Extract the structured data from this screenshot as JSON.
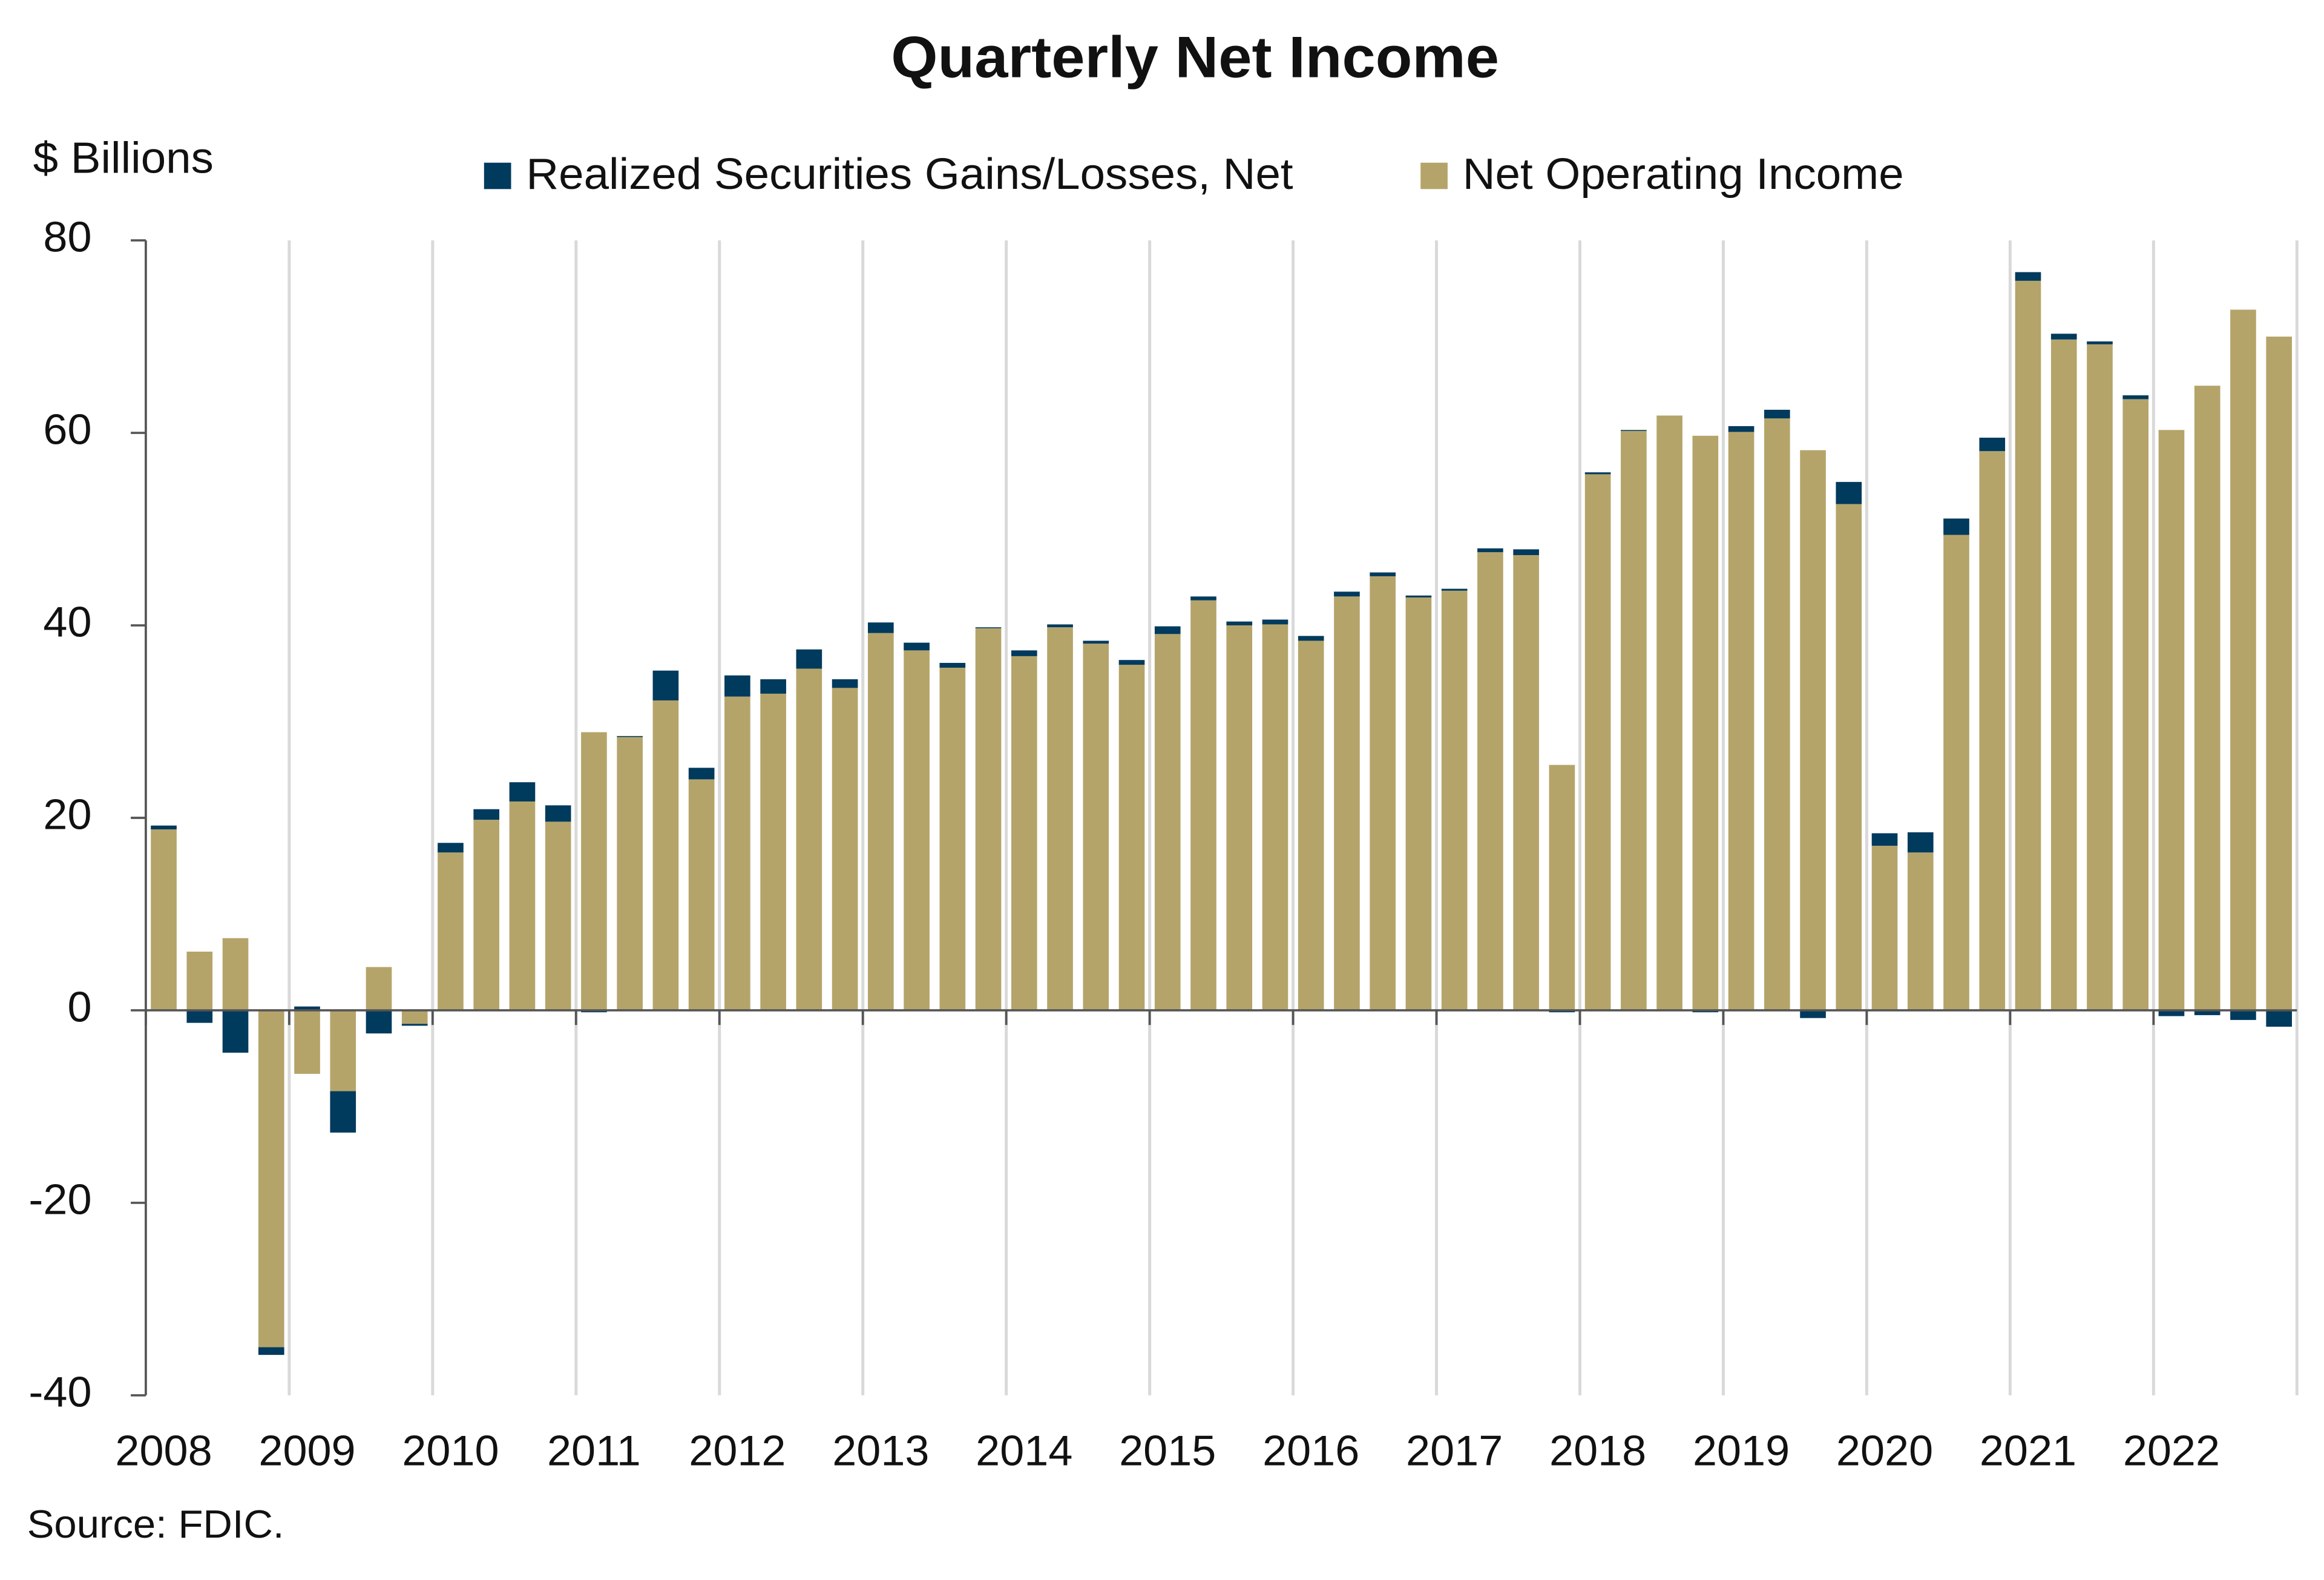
{
  "chart_data": {
    "type": "stacked_bar",
    "title": "Quarterly Net Income",
    "y_label": "$ Billions",
    "source": "Source: FDIC.",
    "categories": [
      "2008",
      null,
      null,
      null,
      "2009",
      null,
      null,
      null,
      "2010",
      null,
      null,
      null,
      "2011",
      null,
      null,
      null,
      "2012",
      null,
      null,
      null,
      "2013",
      null,
      null,
      null,
      "2014",
      null,
      null,
      null,
      "2015",
      null,
      null,
      null,
      "2016",
      null,
      null,
      null,
      "2017",
      null,
      null,
      null,
      "2018",
      null,
      null,
      null,
      "2019",
      null,
      null,
      null,
      "2020",
      null,
      null,
      null,
      "2021",
      null,
      null,
      null,
      "2022",
      null,
      null,
      null
    ],
    "series": [
      {
        "name": "Realized Securities Gains/Losses, Net",
        "color": "#003a5d",
        "values": [
          0.4,
          -1.3,
          -4.4,
          -0.8,
          0.4,
          -4.3,
          -2.4,
          -0.2,
          1.0,
          1.1,
          2.0,
          1.7,
          -0.2,
          0.1,
          3.1,
          1.2,
          2.2,
          1.5,
          2.0,
          0.9,
          1.1,
          0.8,
          0.5,
          0.1,
          0.6,
          0.3,
          0.3,
          0.5,
          0.8,
          0.4,
          0.4,
          0.5,
          0.5,
          0.5,
          0.4,
          0.2,
          0.2,
          0.4,
          0.6,
          -0.2,
          0.2,
          0.1,
          0,
          -0.2,
          0.6,
          0.9,
          -0.8,
          2.3,
          1.3,
          2.1,
          1.7,
          1.4,
          0.9,
          0.6,
          0.3,
          0.4,
          -0.6,
          -0.5,
          -1.0,
          -1.7
        ]
      },
      {
        "name": "Net Operating Income",
        "color": "#b5a46a",
        "values": [
          18.8,
          6.1,
          7.5,
          -35.0,
          -6.6,
          -8.4,
          4.5,
          -1.4,
          16.4,
          19.8,
          21.7,
          19.6,
          28.9,
          28.4,
          32.2,
          24.0,
          32.6,
          32.9,
          35.5,
          33.5,
          39.2,
          37.4,
          35.6,
          39.7,
          36.8,
          39.8,
          38.1,
          35.9,
          39.1,
          42.6,
          40.0,
          40.1,
          38.4,
          43.0,
          45.1,
          42.9,
          43.6,
          47.6,
          47.3,
          25.5,
          55.7,
          60.2,
          61.8,
          59.7,
          60.1,
          61.5,
          58.2,
          52.6,
          17.1,
          16.4,
          49.4,
          58.1,
          75.8,
          69.7,
          69.2,
          63.5,
          60.3,
          64.9,
          72.8,
          70.0
        ]
      }
    ],
    "ylim": [
      -40,
      80
    ],
    "yticks": [
      -40,
      -20,
      0,
      20,
      40,
      60,
      80
    ],
    "legend": "top"
  }
}
